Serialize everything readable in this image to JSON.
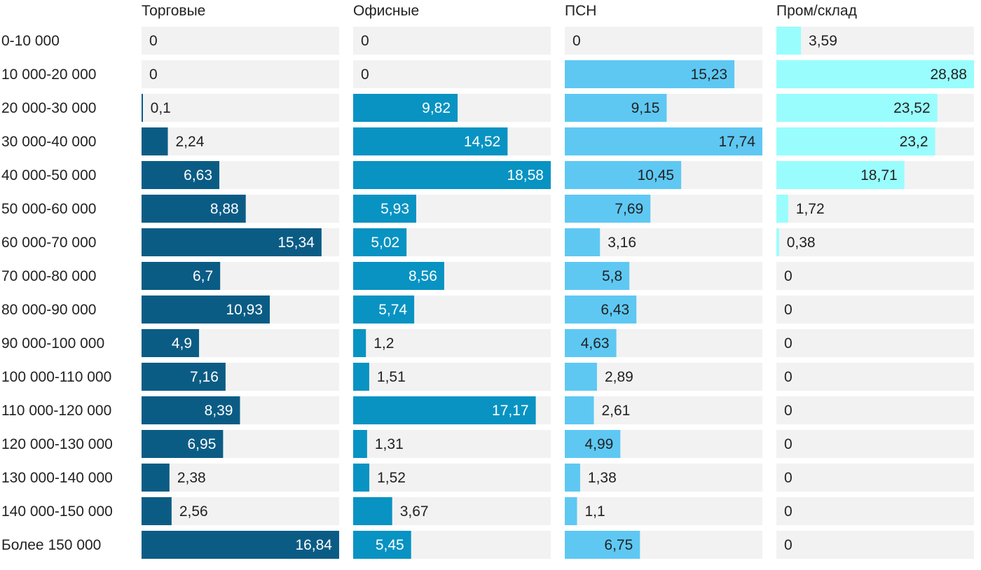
{
  "chart_data": {
    "type": "bar",
    "orientation": "horizontal",
    "layout": "small-multiples",
    "categories": [
      "0-10 000",
      "10 000-20 000",
      "20 000-30 000",
      "30 000-40 000",
      "40 000-50 000",
      "50 000-60 000",
      "60 000-70 000",
      "70 000-80 000",
      "80 000-90 000",
      "90 000-100 000",
      "100 000-110 000",
      "110 000-120 000",
      "120 000-130 000",
      "130 000-140 000",
      "140 000-150 000",
      "Более 150 000"
    ],
    "series": [
      {
        "name": "Торговые",
        "color": "#0b5c85",
        "value_label_inside": "#ffffff",
        "values": [
          0,
          0,
          0.1,
          2.24,
          6.63,
          8.88,
          15.34,
          6.7,
          10.93,
          4.9,
          7.16,
          8.39,
          6.95,
          2.38,
          2.56,
          16.84
        ],
        "labels": [
          "0",
          "0",
          "0,1",
          "2,24",
          "6,63",
          "8,88",
          "15,34",
          "6,7",
          "10,93",
          "4,9",
          "7,16",
          "8,39",
          "6,95",
          "2,38",
          "2,56",
          "16,84"
        ]
      },
      {
        "name": "Офисные",
        "color": "#0893c2",
        "value_label_inside": "#ffffff",
        "values": [
          0,
          0,
          9.82,
          14.52,
          18.58,
          5.93,
          5.02,
          8.56,
          5.74,
          1.2,
          1.51,
          17.17,
          1.31,
          1.52,
          3.67,
          5.45
        ],
        "labels": [
          "0",
          "0",
          "9,82",
          "14,52",
          "18,58",
          "5,93",
          "5,02",
          "8,56",
          "5,74",
          "1,2",
          "1,51",
          "17,17",
          "1,31",
          "1,52",
          "3,67",
          "5,45"
        ]
      },
      {
        "name": "ПСН",
        "color": "#5ec8f3",
        "value_label_inside": "#222222",
        "values": [
          0,
          15.23,
          9.15,
          17.74,
          10.45,
          7.69,
          3.16,
          5.8,
          6.43,
          4.63,
          2.89,
          2.61,
          4.99,
          1.38,
          1.1,
          6.75
        ],
        "labels": [
          "0",
          "15,23",
          "9,15",
          "17,74",
          "10,45",
          "7,69",
          "3,16",
          "5,8",
          "6,43",
          "4,63",
          "2,89",
          "2,61",
          "4,99",
          "1,38",
          "1,1",
          "6,75"
        ]
      },
      {
        "name": "Пром/склад",
        "color": "#99fdfd",
        "value_label_inside": "#222222",
        "values": [
          3.59,
          28.88,
          23.52,
          23.2,
          18.71,
          1.72,
          0.38,
          0,
          0,
          0,
          0,
          0,
          0,
          0,
          0,
          0
        ],
        "labels": [
          "3,59",
          "28,88",
          "23,52",
          "23,2",
          "18,71",
          "1,72",
          "0,38",
          "0",
          "0",
          "0",
          "0",
          "0",
          "0",
          "0",
          "0",
          "0"
        ]
      }
    ],
    "track_color": "#f2f2f2",
    "text_color": "#222222",
    "grid": false,
    "legend": "none"
  }
}
